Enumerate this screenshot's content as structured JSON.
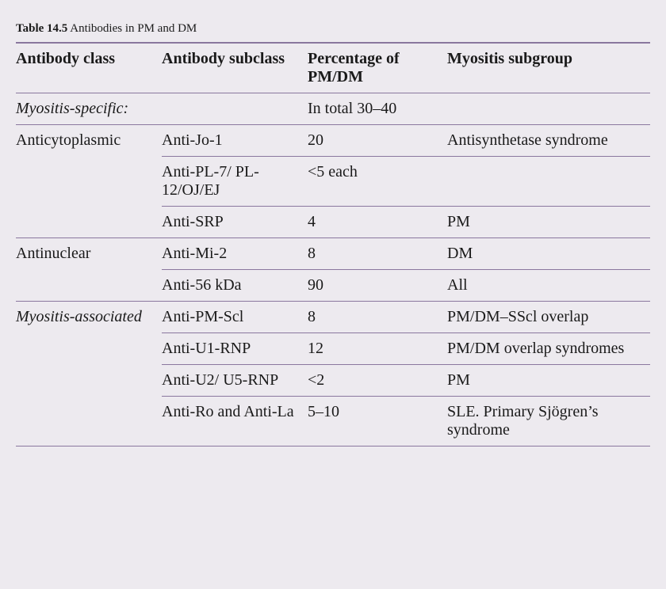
{
  "caption": {
    "label": "Table 14.5",
    "title": "Antibodies in PM and DM"
  },
  "headers": {
    "c1": "Antibody class",
    "c2": "Antibody subclass",
    "c3": "Percentage of PM/DM",
    "c4": "Myositis subgroup"
  },
  "rows": {
    "r0": {
      "c1": "Myositis-specific:",
      "c2": "",
      "c3": "In total 30–40",
      "c4": ""
    },
    "r1": {
      "c1": "Anticytoplasmic",
      "c2": "Anti-Jo-1",
      "c3": "20",
      "c4": "Antisynthetase syndrome"
    },
    "r2": {
      "c2": "Anti-PL-7/ PL-12/OJ/EJ",
      "c3": "<5 each",
      "c4": ""
    },
    "r3": {
      "c2": "Anti-SRP",
      "c3": "4",
      "c4": "PM"
    },
    "r4": {
      "c1": "Antinuclear",
      "c2": "Anti-Mi-2",
      "c3": "8",
      "c4": "DM"
    },
    "r5": {
      "c2": "Anti-56 kDa",
      "c3": "90",
      "c4": "All"
    },
    "r6": {
      "c1": "Myositis-associated",
      "c2": "Anti-PM-Scl",
      "c3": "8",
      "c4": "PM/DM–SScl overlap"
    },
    "r7": {
      "c2": "Anti-U1-RNP",
      "c3": "12",
      "c4": "PM/DM overlap syndromes"
    },
    "r8": {
      "c2": "Anti-U2/ U5-RNP",
      "c3": "<2",
      "c4": "PM"
    },
    "r9": {
      "c2": "Anti-Ro and Anti-La",
      "c3": "5–10",
      "c4": "SLE. Primary Sjögren’s syndrome"
    }
  },
  "style": {
    "background": "#edeaef",
    "border_color": "#8a779e",
    "text_color": "#1a1a1a",
    "header_fontsize": 20,
    "body_fontsize": 20,
    "caption_fontsize": 15
  }
}
